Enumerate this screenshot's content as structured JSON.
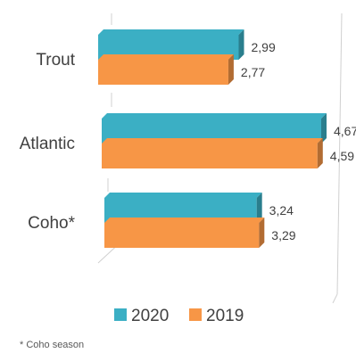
{
  "chart_data": {
    "type": "bar",
    "orientation": "horizontal",
    "style": "3d",
    "categories": [
      "Trout",
      "Atlantic",
      "Coho*"
    ],
    "series": [
      {
        "name": "2020",
        "color": "#3BAFC4",
        "values": [
          2.99,
          4.67,
          3.24
        ],
        "labels": [
          "2,99",
          "4,67",
          "3,24"
        ]
      },
      {
        "name": "2019",
        "color": "#F79646",
        "values": [
          2.77,
          4.59,
          3.29
        ],
        "labels": [
          "2,77",
          "4,59",
          "3,29"
        ]
      }
    ],
    "xlim": [
      0,
      4.67
    ],
    "grid": false,
    "legend_position": "bottom",
    "footnote": "* Coho season"
  }
}
